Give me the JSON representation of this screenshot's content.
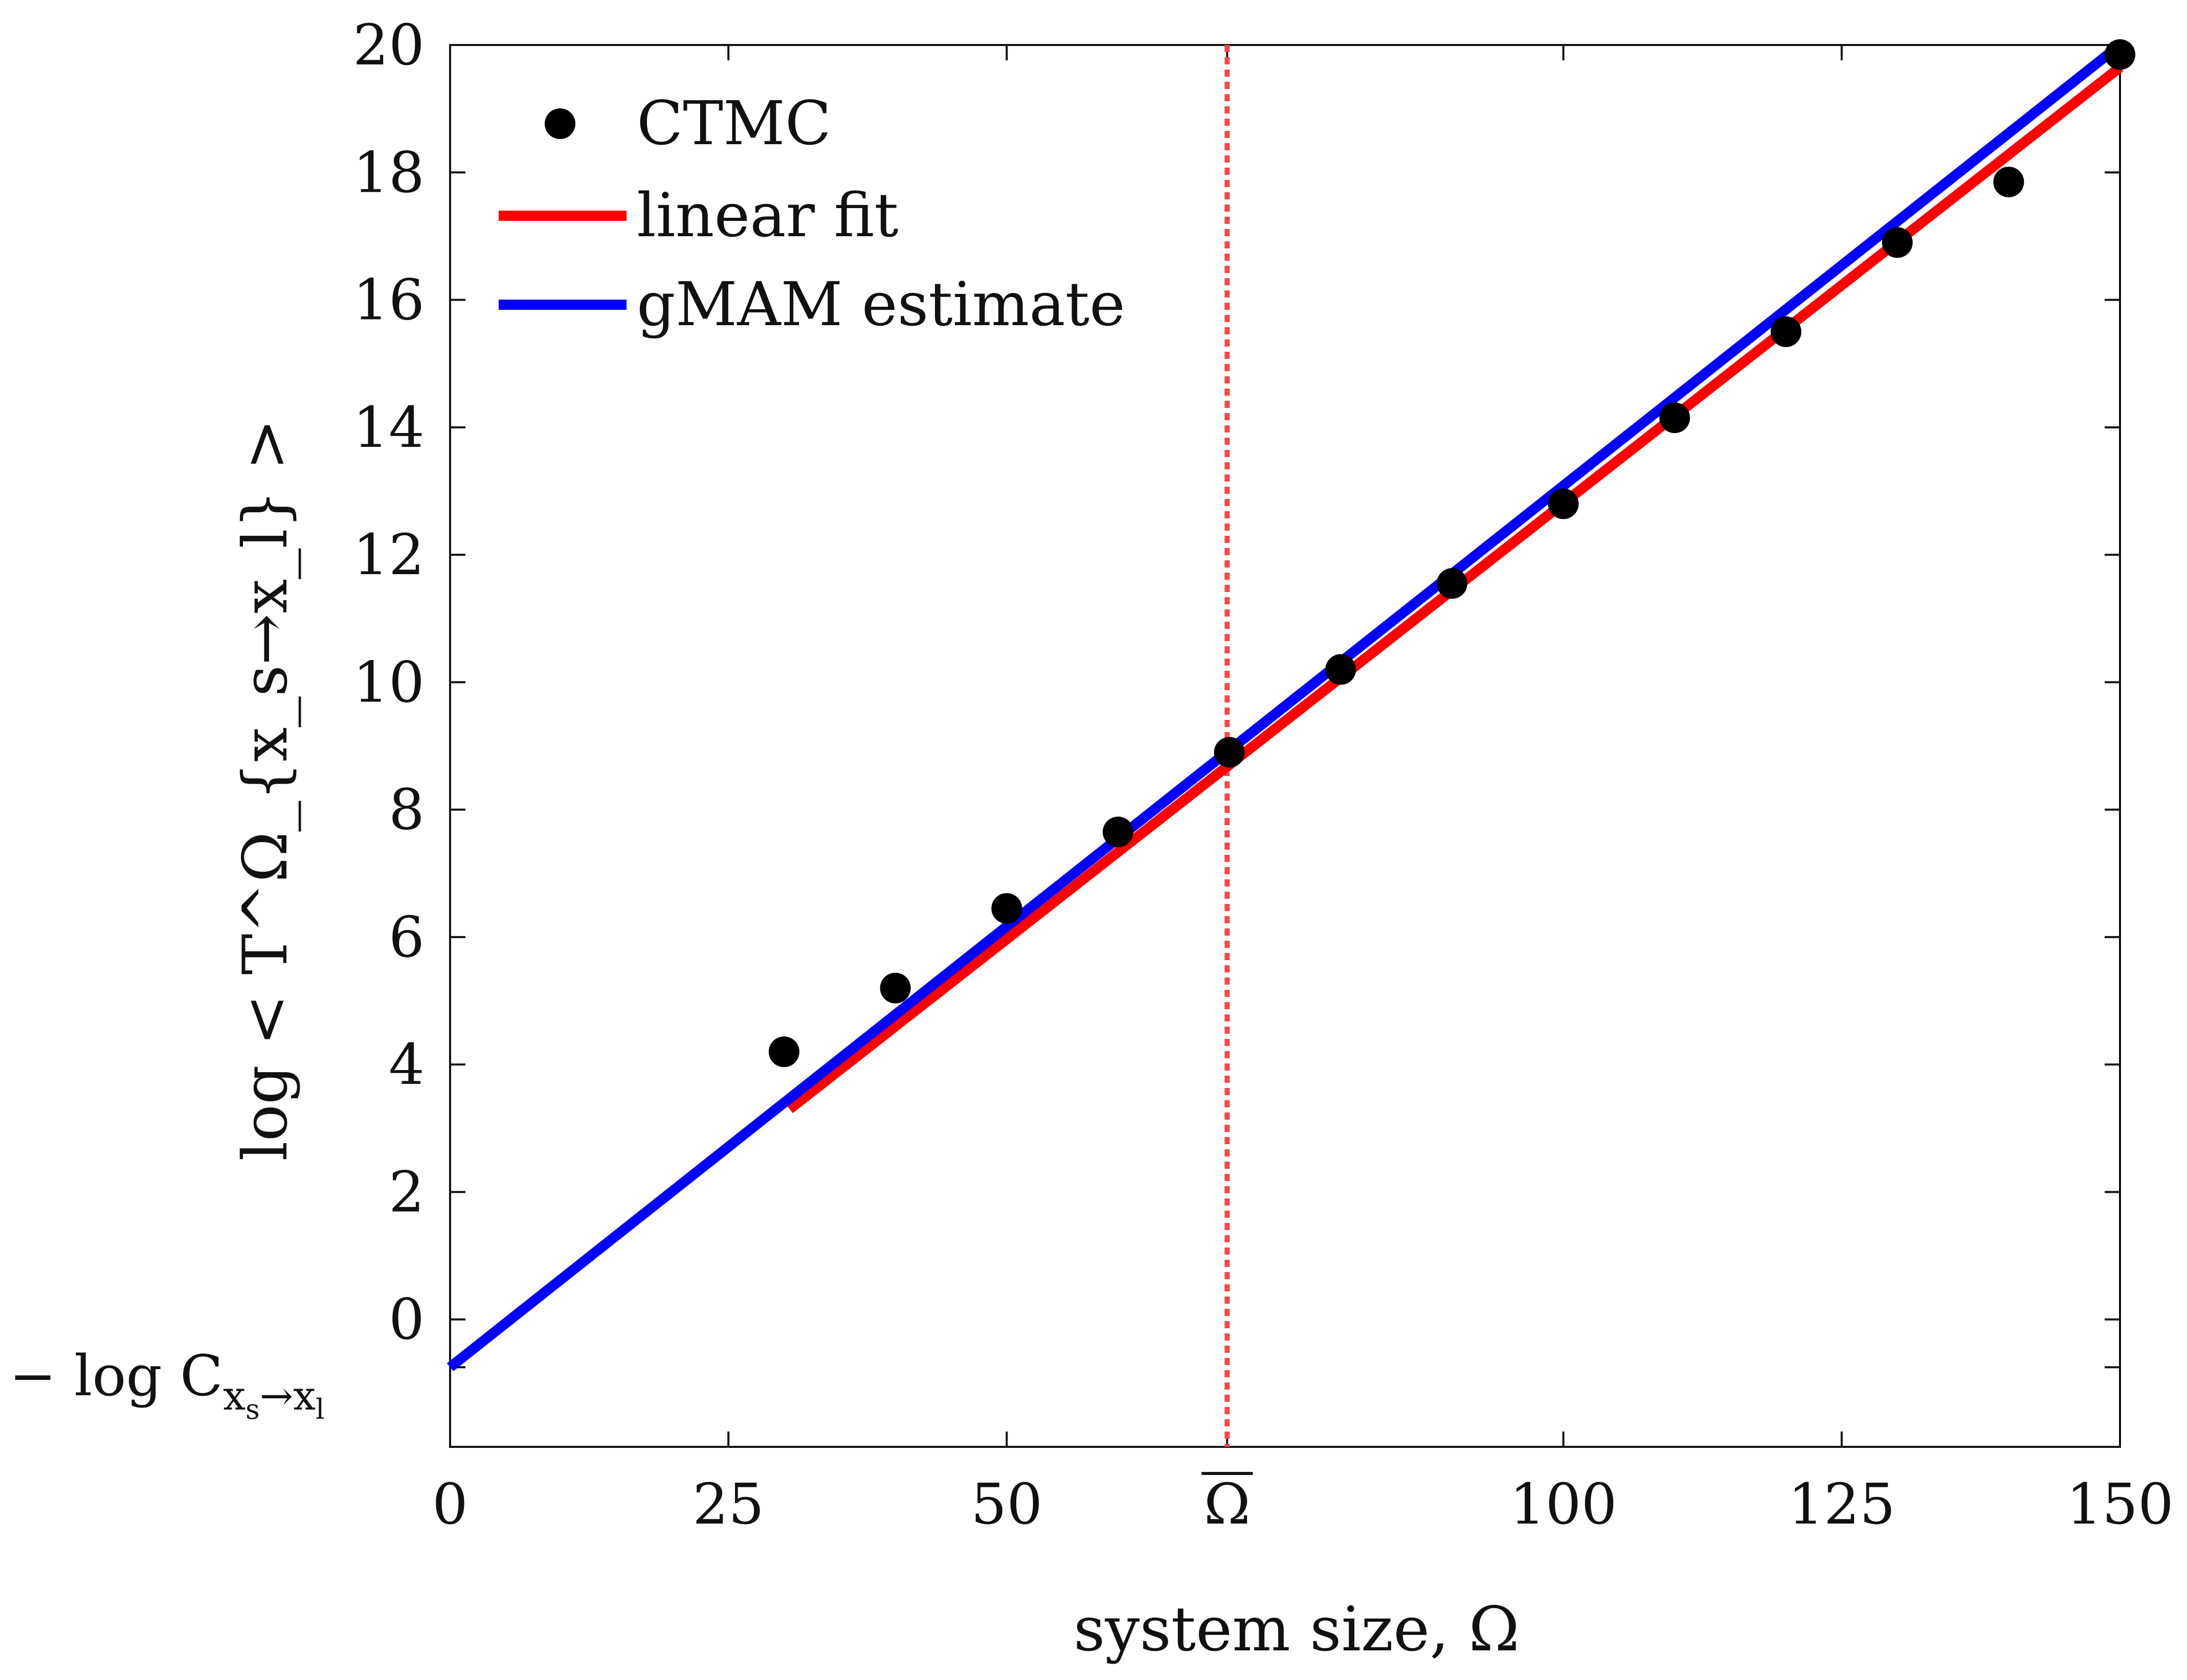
{
  "chart_data": {
    "type": "line",
    "title": "",
    "xlabel": "system size, Ω",
    "ylabel": "log < T^Ω_{x_s→x_l} >",
    "xlim": [
      0,
      150
    ],
    "ylim": [
      -2,
      20
    ],
    "xticks": [
      {
        "value": 0,
        "label": "0"
      },
      {
        "value": 25,
        "label": "25"
      },
      {
        "value": 50,
        "label": "50"
      },
      {
        "value": 69.8,
        "label": "Ω̄"
      },
      {
        "value": 100,
        "label": "100"
      },
      {
        "value": 125,
        "label": "125"
      },
      {
        "value": 150,
        "label": "150"
      }
    ],
    "yticks": [
      {
        "value": 0,
        "label": "0"
      },
      {
        "value": 2,
        "label": "2"
      },
      {
        "value": 4,
        "label": "4"
      },
      {
        "value": 6,
        "label": "6"
      },
      {
        "value": 8,
        "label": "8"
      },
      {
        "value": 10,
        "label": "10"
      },
      {
        "value": 12,
        "label": "12"
      },
      {
        "value": 14,
        "label": "14"
      },
      {
        "value": 16,
        "label": "16"
      },
      {
        "value": 18,
        "label": "18"
      },
      {
        "value": 20,
        "label": "20"
      }
    ],
    "special_ytick": {
      "value": -0.75,
      "prefix": "− log C",
      "subscript": "x",
      "subsub": "s",
      "arrow": "→x",
      "subsub2": "l"
    },
    "series": [
      {
        "name": "CTMC",
        "kind": "scatter",
        "color": "#000000",
        "x": [
          30,
          40,
          50,
          60,
          70,
          80,
          90,
          100,
          110,
          120,
          130,
          140,
          150
        ],
        "y": [
          4.2,
          5.2,
          6.45,
          7.65,
          8.9,
          10.2,
          11.55,
          12.8,
          14.15,
          15.5,
          16.9,
          17.85,
          19.85
        ]
      },
      {
        "name": "linear fit",
        "kind": "line",
        "color": "#ff0000",
        "x": [
          30.5,
          150
        ],
        "y": [
          3.3,
          19.65
        ]
      },
      {
        "name": "gMAM estimate",
        "kind": "line",
        "color": "#0000ff",
        "x": [
          0,
          150
        ],
        "y": [
          -0.75,
          20
        ]
      }
    ],
    "vline": {
      "x": 69.8,
      "color": "#ff4444",
      "style": "dotted"
    },
    "legend": {
      "position": "top-left"
    },
    "grid": false
  }
}
